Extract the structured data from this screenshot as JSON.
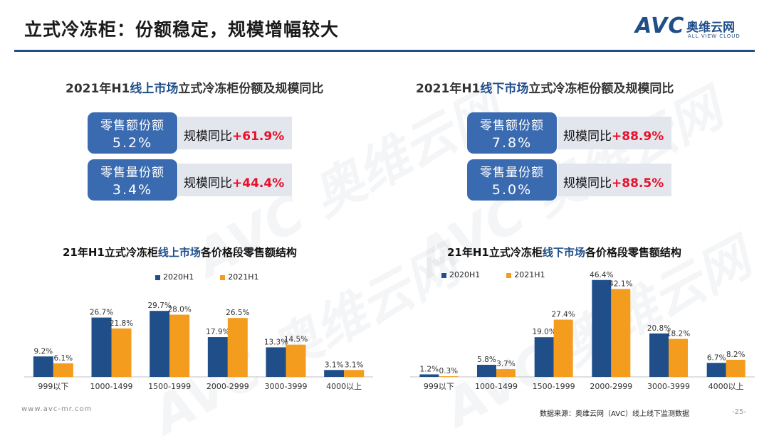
{
  "page": {
    "title": "立式冷冻柜：份额稳定，规模增幅较大",
    "footer_url": "www.avc-mr.com",
    "source": "数据来源：奥维云网（AVC）线上线下监测数据",
    "page_number": "-25-"
  },
  "logo": {
    "mark": "AVC",
    "name_cn": "奥维云网",
    "name_en": "ALL VIEW CLOUD"
  },
  "online": {
    "title_prefix": "2021年H1",
    "title_highlight": "线上市场",
    "title_suffix": "立式冷冻柜份额及规模同比",
    "sales_amount": {
      "label": "零售额份额",
      "value": "5.2%",
      "yoy_label": "规模同比",
      "yoy_value": "+61.9%"
    },
    "sales_volume": {
      "label": "零售量份额",
      "value": "3.4%",
      "yoy_label": "规模同比",
      "yoy_value": "+44.4%"
    }
  },
  "offline": {
    "title_prefix": "2021年H1",
    "title_highlight": "线下市场",
    "title_suffix": "立式冷冻柜份额及规模同比",
    "sales_amount": {
      "label": "零售额份额",
      "value": "7.8%",
      "yoy_label": "规模同比",
      "yoy_value": "+88.9%"
    },
    "sales_volume": {
      "label": "零售量份额",
      "value": "5.0%",
      "yoy_label": "规模同比",
      "yoy_value": "+88.5%"
    }
  },
  "colors": {
    "series_2020": "#1f4e89",
    "series_2021": "#f39c1e",
    "badge": "#3a6ab0",
    "up": "#e8102a"
  },
  "chart_titles": {
    "online": {
      "prefix": "21年H1立式冷冻柜",
      "highlight": "线上市场",
      "suffix": "各价格段零售额结构"
    },
    "offline": {
      "prefix": "21年H1立式冷冻柜",
      "highlight": "线下市场",
      "suffix": "各价格段零售额结构"
    }
  },
  "chart_data": [
    {
      "type": "bar",
      "title": "21年H1立式冷冻柜线上市场各价格段零售额结构",
      "categories": [
        "999以下",
        "1000-1499",
        "1500-1999",
        "2000-2999",
        "3000-3999",
        "4000以上"
      ],
      "series": [
        {
          "name": "2020H1",
          "values": [
            9.2,
            26.7,
            29.7,
            17.9,
            13.3,
            3.1
          ]
        },
        {
          "name": "2021H1",
          "values": [
            6.1,
            21.8,
            28.0,
            26.5,
            14.5,
            3.1
          ]
        }
      ],
      "unit": "%",
      "ylim": [
        0,
        32
      ],
      "grid": false,
      "legend": "top-center"
    },
    {
      "type": "bar",
      "title": "21年H1立式冷冻柜线下市场各价格段零售额结构",
      "categories": [
        "999以下",
        "1000-1499",
        "1500-1999",
        "2000-2999",
        "3000-3999",
        "4000以上"
      ],
      "series": [
        {
          "name": "2020H1",
          "values": [
            1.2,
            5.8,
            19.0,
            46.4,
            20.8,
            6.7
          ]
        },
        {
          "name": "2021H1",
          "values": [
            0.3,
            3.7,
            27.4,
            42.1,
            18.2,
            8.2
          ]
        }
      ],
      "unit": "%",
      "ylim": [
        0,
        47
      ],
      "grid": false,
      "legend": "top-left"
    }
  ]
}
